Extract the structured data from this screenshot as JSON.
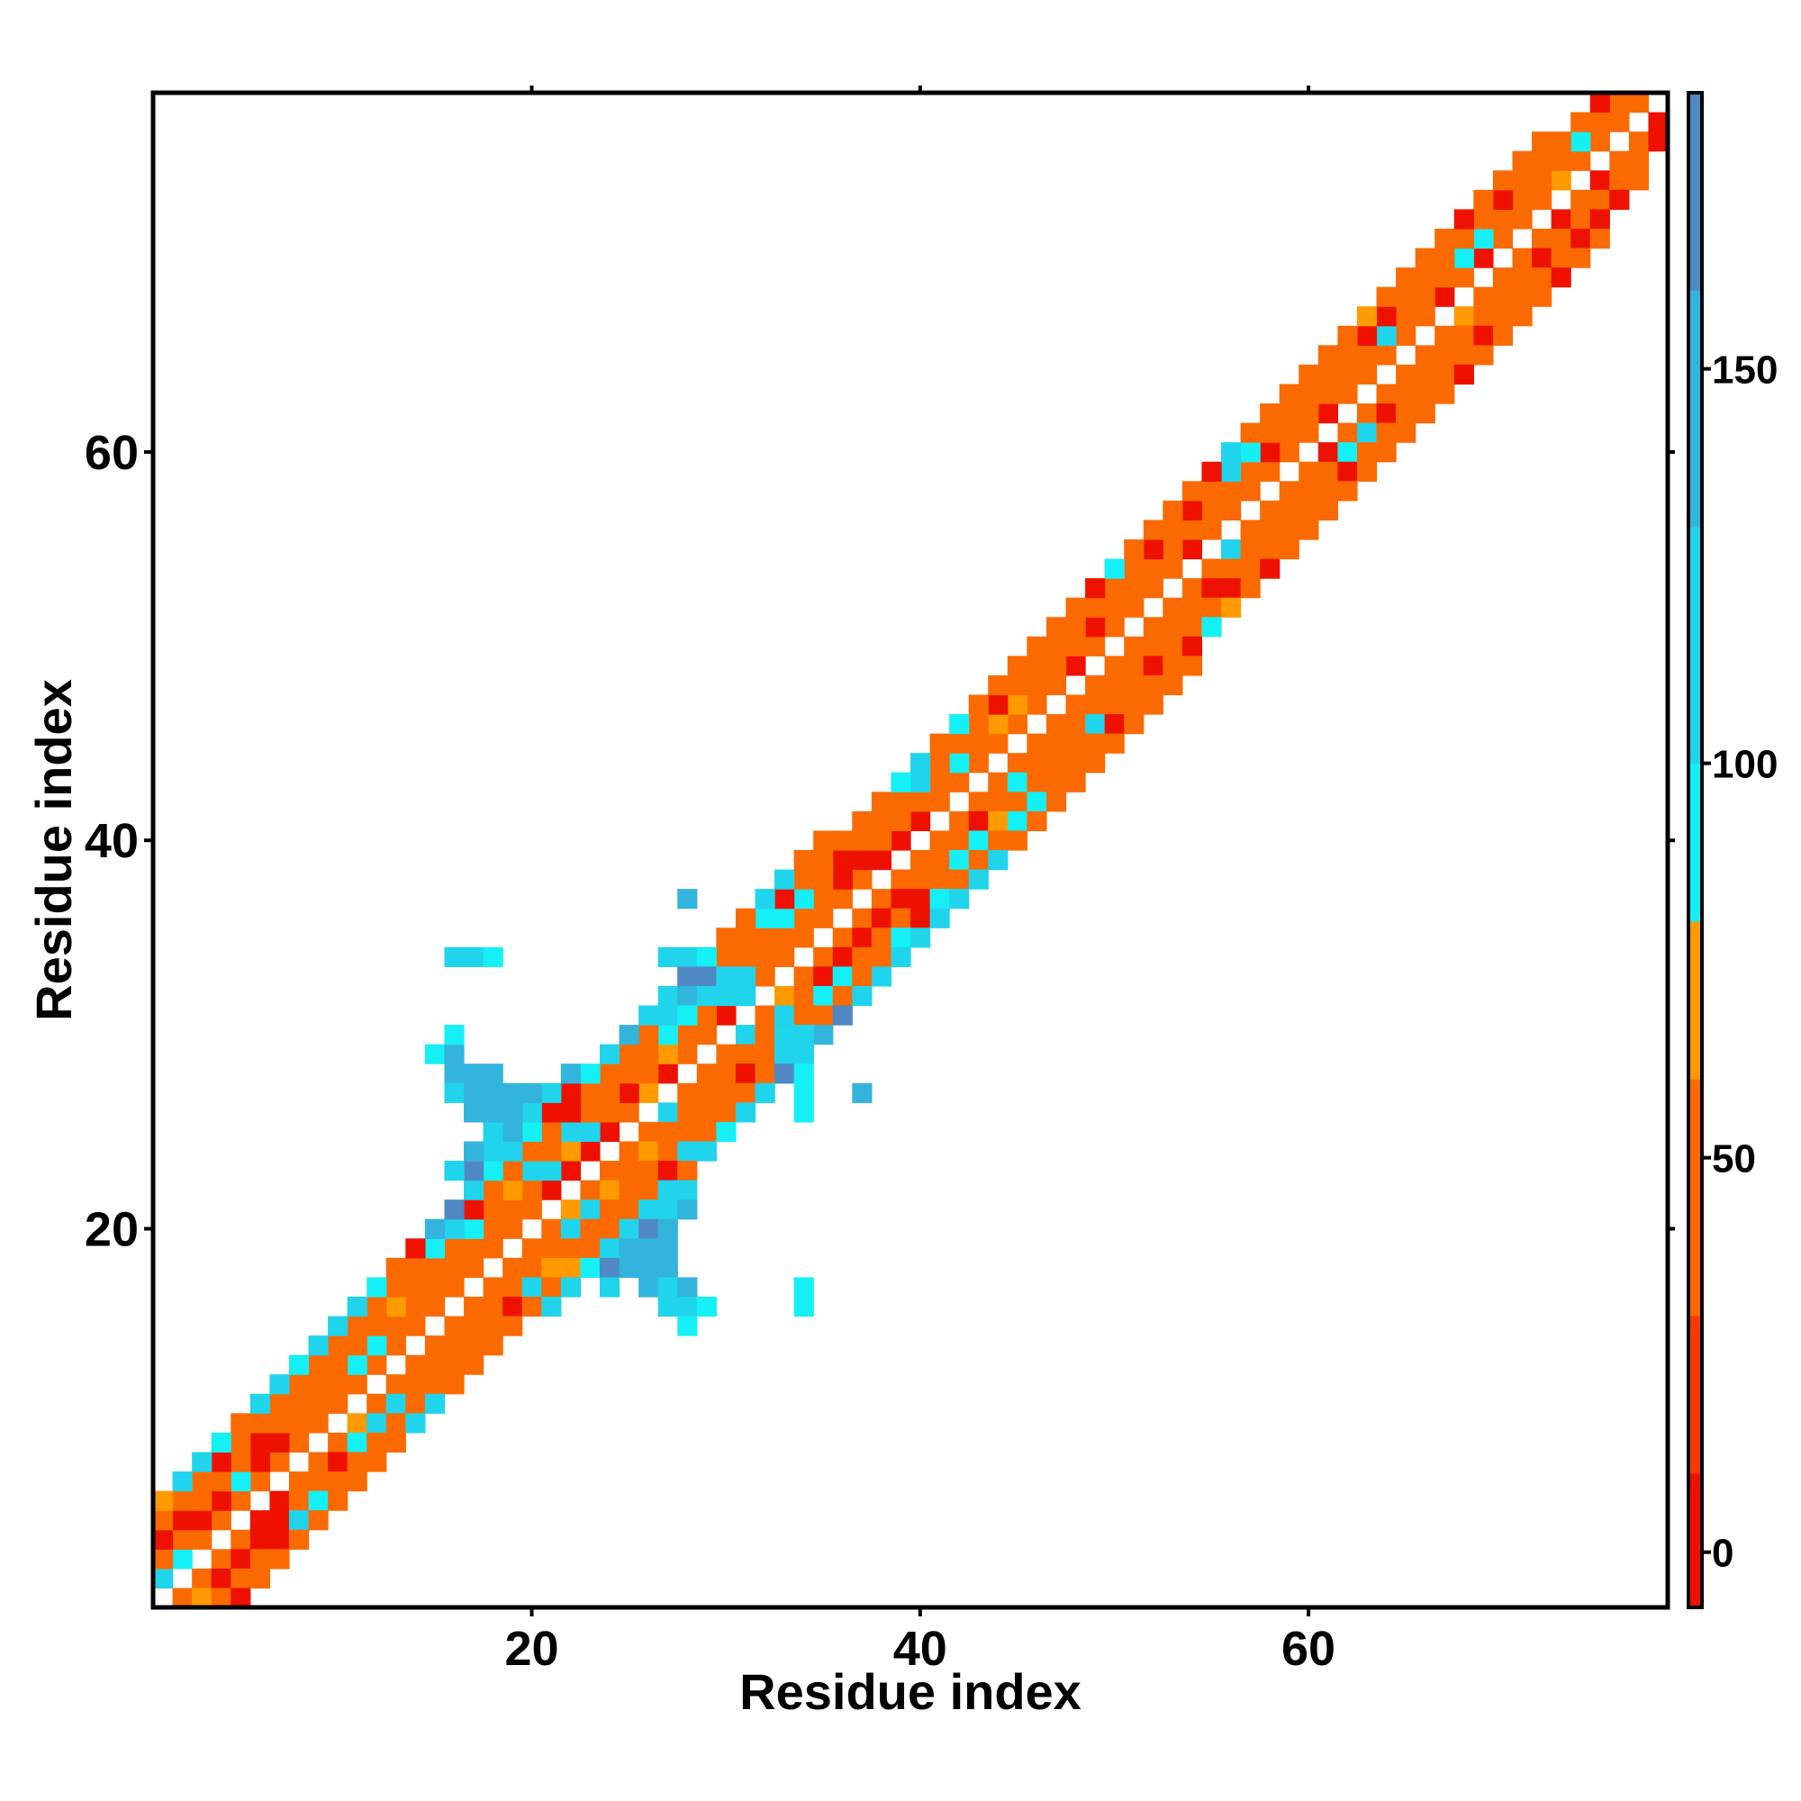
{
  "chart_data": {
    "type": "heatmap",
    "title": "",
    "xlabel": "Residue index",
    "ylabel": "Residue index",
    "xlim": [
      0.5,
      78.5
    ],
    "ylim": [
      0.5,
      78.5
    ],
    "x_ticks": [
      20,
      40,
      60
    ],
    "y_ticks": [
      20,
      40,
      60
    ],
    "colorbar": {
      "ticks": [
        0,
        50,
        100,
        150
      ],
      "range": [
        -7,
        185
      ],
      "bands": [
        {
          "from": -7,
          "to": 10,
          "color": "#ee1100"
        },
        {
          "from": 10,
          "to": 30,
          "color": "#f53a00"
        },
        {
          "from": 30,
          "to": 60,
          "color": "#fb6a00"
        },
        {
          "from": 60,
          "to": 80,
          "color": "#ff9a00"
        },
        {
          "from": 80,
          "to": 100,
          "color": "#14f0f5"
        },
        {
          "from": 100,
          "to": 130,
          "color": "#20d4ec"
        },
        {
          "from": 130,
          "to": 160,
          "color": "#33b4dc"
        },
        {
          "from": 160,
          "to": 185,
          "color": "#5088c4"
        }
      ],
      "top_color": "#ffffff"
    },
    "palette": {
      "r": "#ee1100",
      "o": "#fb6a00",
      "y": "#ff9a00",
      "c": "#14f0f5",
      "t": "#20d4ec",
      "b": "#33b4dc",
      "d": "#5088c4"
    },
    "grid": false,
    "legend": "colorbar-right",
    "diagonal_offsets": {
      "1": "tcoooooooooooooooooorrrroyroorooooooorrroooooooroooooroooooorooooororoooyooooor",
      "-1": "oooorroooyooooooooooyooootoootoyooooooooooooooooooooootoooorooooooyoooororoorr",
      "2": "oorrcrroooccooooooootytoroyoooooooorroooocoyyooorooooooooroooootoooccoooocoor",
      "-2": "yrrrroorcttoooooooottyoyooooootorrrrrooorocooooooooorooooooctrooooooorooooor",
      "3": "rrooorooooooyooocoytotooooccooooccoroootooorooooooororotcooooorroooooroooor",
      "-3": "ooortcooooooooortyoooooooooroooccoooroccyooootoorooorooooorooooooroooorrro",
      "4": "ooorooooooooooctroooorooootoooocroooooctocoooooorcoooortooooooyooooroooo",
      "-4": "roooooooottooooooyoooortoooootoooocrcoooccooorooorcyorooooooooorooooroo",
      "5": "yttcottctttcorbdtctcrrctbtttooottoo",
      "-5": "ttcttttotcttctbdttttttttoooooooooo",
      "6": "dtbttb",
      "-6": "dtdtt",
      "7": "tbtbb",
      "-7": "tbbbb"
    },
    "extra_cells": [
      {
        "x": 16,
        "y": 34,
        "v": "t"
      },
      {
        "x": 17,
        "y": 34,
        "v": "t"
      },
      {
        "x": 18,
        "y": 34,
        "v": "c"
      },
      {
        "x": 15,
        "y": 29,
        "v": "c"
      },
      {
        "x": 16,
        "y": 29,
        "v": "b"
      },
      {
        "x": 16,
        "y": 30,
        "v": "c"
      },
      {
        "x": 16,
        "y": 28,
        "v": "b"
      },
      {
        "x": 17,
        "y": 28,
        "v": "b"
      },
      {
        "x": 18,
        "y": 28,
        "v": "b"
      },
      {
        "x": 16,
        "y": 27,
        "v": "t"
      },
      {
        "x": 17,
        "y": 27,
        "v": "b"
      },
      {
        "x": 18,
        "y": 27,
        "v": "b"
      },
      {
        "x": 19,
        "y": 27,
        "v": "b"
      },
      {
        "x": 17,
        "y": 26,
        "v": "b"
      },
      {
        "x": 18,
        "y": 26,
        "v": "b"
      },
      {
        "x": 19,
        "y": 26,
        "v": "b"
      },
      {
        "x": 28,
        "y": 37,
        "v": "b"
      },
      {
        "x": 27,
        "y": 34,
        "v": "t"
      },
      {
        "x": 28,
        "y": 34,
        "v": "t"
      },
      {
        "x": 29,
        "y": 34,
        "v": "c"
      },
      {
        "x": 28,
        "y": 33,
        "v": "d"
      },
      {
        "x": 29,
        "y": 33,
        "v": "d"
      },
      {
        "x": 30,
        "y": 33,
        "v": "t"
      },
      {
        "x": 31,
        "y": 33,
        "v": "t"
      },
      {
        "x": 28,
        "y": 32,
        "v": "b"
      },
      {
        "x": 29,
        "y": 32,
        "v": "t"
      },
      {
        "x": 30,
        "y": 32,
        "v": "t"
      },
      {
        "x": 31,
        "y": 32,
        "v": "t"
      },
      {
        "x": 28,
        "y": 31,
        "v": "c"
      },
      {
        "x": 33,
        "y": 30,
        "v": "t"
      },
      {
        "x": 34,
        "y": 30,
        "v": "t"
      },
      {
        "x": 33,
        "y": 29,
        "v": "t"
      },
      {
        "x": 34,
        "y": 29,
        "v": "t"
      },
      {
        "x": 33,
        "y": 28,
        "v": "d"
      },
      {
        "x": 34,
        "y": 28,
        "v": "c"
      },
      {
        "x": 32,
        "y": 27,
        "v": "t"
      },
      {
        "x": 34,
        "y": 27,
        "v": "c"
      },
      {
        "x": 34,
        "y": 26,
        "v": "c"
      },
      {
        "x": 37,
        "y": 27,
        "v": "b"
      },
      {
        "x": 25,
        "y": 19,
        "v": "b"
      },
      {
        "x": 26,
        "y": 19,
        "v": "b"
      },
      {
        "x": 27,
        "y": 19,
        "v": "b"
      },
      {
        "x": 26,
        "y": 18,
        "v": "b"
      },
      {
        "x": 27,
        "y": 18,
        "v": "b"
      },
      {
        "x": 26,
        "y": 17,
        "v": "b"
      },
      {
        "x": 27,
        "y": 17,
        "v": "t"
      },
      {
        "x": 28,
        "y": 17,
        "v": "b"
      },
      {
        "x": 27,
        "y": 16,
        "v": "t"
      },
      {
        "x": 28,
        "y": 16,
        "v": "t"
      },
      {
        "x": 29,
        "y": 16,
        "v": "c"
      },
      {
        "x": 28,
        "y": 15,
        "v": "c"
      },
      {
        "x": 34,
        "y": 17,
        "v": "c"
      },
      {
        "x": 34,
        "y": 16,
        "v": "c"
      }
    ]
  }
}
